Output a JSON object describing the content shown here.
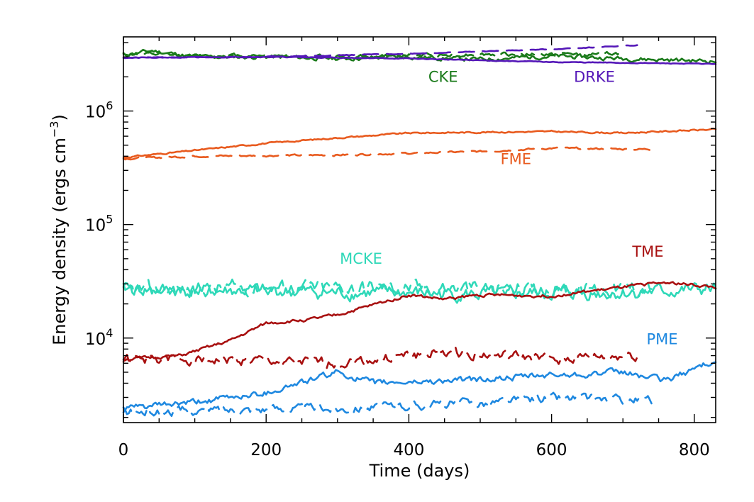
{
  "chart_data": {
    "type": "line",
    "xlabel": "Time (days)",
    "ylabel_main": "Energy density (ergs cm",
    "ylabel_sup": "−3",
    "ylabel_close": ")",
    "xlim": [
      0,
      830
    ],
    "ylim": [
      1800,
      4500000
    ],
    "yscale": "log",
    "x_ticks": [
      0,
      200,
      400,
      600,
      800
    ],
    "x_tick_labels": [
      "0",
      "200",
      "400",
      "600",
      "800"
    ],
    "y_ticks": [
      {
        "value": 10000,
        "base": "10",
        "exp": "4"
      },
      {
        "value": 100000,
        "base": "10",
        "exp": "5"
      },
      {
        "value": 1000000,
        "base": "10",
        "exp": "6"
      }
    ],
    "grid": false,
    "series": [
      {
        "name": "CKE",
        "label_pos": [
          448,
          1800000
        ],
        "color": "#1a7a1a",
        "style": "solid",
        "seed": 11,
        "noise": 0.035,
        "points": [
          [
            0,
            3100000
          ],
          [
            40,
            3400000
          ],
          [
            100,
            3000000
          ],
          [
            200,
            3000000
          ],
          [
            300,
            2900000
          ],
          [
            400,
            3000000
          ],
          [
            500,
            2850000
          ],
          [
            600,
            3050000
          ],
          [
            700,
            2900000
          ],
          [
            830,
            2750000
          ]
        ]
      },
      {
        "name": "",
        "color": "#1a7a1a",
        "style": "dashed",
        "seed": 12,
        "noise": 0.03,
        "points": [
          [
            0,
            3200000
          ],
          [
            100,
            3050000
          ],
          [
            200,
            3100000
          ],
          [
            300,
            3000000
          ],
          [
            400,
            3100000
          ],
          [
            500,
            3150000
          ],
          [
            600,
            3150000
          ],
          [
            700,
            3200000
          ]
        ]
      },
      {
        "name": "DRKE",
        "label_pos": [
          660,
          1800000
        ],
        "color": "#5518b8",
        "style": "solid",
        "seed": 21,
        "noise": 0.006,
        "points": [
          [
            0,
            2950000
          ],
          [
            200,
            3000000
          ],
          [
            400,
            2900000
          ],
          [
            600,
            2700000
          ],
          [
            830,
            2600000
          ]
        ]
      },
      {
        "name": "",
        "color": "#5518b8",
        "style": "dashed",
        "seed": 22,
        "noise": 0.006,
        "points": [
          [
            0,
            2950000
          ],
          [
            200,
            3000000
          ],
          [
            400,
            3200000
          ],
          [
            600,
            3500000
          ],
          [
            720,
            3800000
          ]
        ]
      },
      {
        "name": "FME",
        "label_pos": [
          550,
          340000
        ],
        "color": "#e85a1e",
        "style": "solid",
        "seed": 31,
        "noise": 0.012,
        "points": [
          [
            0,
            390000
          ],
          [
            100,
            450000
          ],
          [
            200,
            520000
          ],
          [
            300,
            580000
          ],
          [
            400,
            640000
          ],
          [
            500,
            650000
          ],
          [
            600,
            660000
          ],
          [
            700,
            640000
          ],
          [
            830,
            690000
          ]
        ]
      },
      {
        "name": "",
        "color": "#e85a1e",
        "style": "dashed",
        "seed": 32,
        "noise": 0.015,
        "points": [
          [
            0,
            380000
          ],
          [
            100,
            400000
          ],
          [
            300,
            410000
          ],
          [
            500,
            440000
          ],
          [
            600,
            470000
          ],
          [
            740,
            460000
          ]
        ]
      },
      {
        "name": "MCKE",
        "label_pos": [
          333,
          45000
        ],
        "color": "#2ed8b8",
        "style": "solid",
        "seed": 41,
        "noise": 0.11,
        "points": [
          [
            0,
            27000
          ],
          [
            100,
            26000
          ],
          [
            200,
            26000
          ],
          [
            300,
            25000
          ],
          [
            400,
            25000
          ],
          [
            500,
            24000
          ],
          [
            600,
            25000
          ],
          [
            700,
            25000
          ],
          [
            830,
            27000
          ]
        ]
      },
      {
        "name": "",
        "color": "#2ed8b8",
        "style": "dashed",
        "seed": 42,
        "noise": 0.12,
        "points": [
          [
            0,
            26000
          ],
          [
            200,
            28000
          ],
          [
            400,
            28000
          ],
          [
            600,
            27000
          ],
          [
            740,
            28000
          ]
        ]
      },
      {
        "name": "TME",
        "label_pos": [
          735,
          52000
        ],
        "color": "#a81010",
        "style": "solid",
        "seed": 51,
        "noise": 0.025,
        "points": [
          [
            0,
            6500
          ],
          [
            80,
            7000
          ],
          [
            150,
            9500
          ],
          [
            200,
            13500
          ],
          [
            260,
            14500
          ],
          [
            300,
            16000
          ],
          [
            400,
            24000
          ],
          [
            450,
            22000
          ],
          [
            500,
            24000
          ],
          [
            600,
            23500
          ],
          [
            700,
            28000
          ],
          [
            760,
            31000
          ],
          [
            830,
            28000
          ]
        ]
      },
      {
        "name": "",
        "color": "#a81010",
        "style": "dashed",
        "seed": 52,
        "noise": 0.08,
        "points": [
          [
            0,
            6500
          ],
          [
            100,
            6500
          ],
          [
            300,
            6000
          ],
          [
            450,
            7500
          ],
          [
            600,
            6500
          ],
          [
            720,
            7000
          ]
        ]
      },
      {
        "name": "PME",
        "label_pos": [
          755,
          8800
        ],
        "color": "#1e88e0",
        "style": "solid",
        "seed": 61,
        "noise": 0.05,
        "points": [
          [
            0,
            2400
          ],
          [
            100,
            2700
          ],
          [
            200,
            3300
          ],
          [
            300,
            5000
          ],
          [
            350,
            4000
          ],
          [
            500,
            4300
          ],
          [
            600,
            4700
          ],
          [
            700,
            5000
          ],
          [
            760,
            4200
          ],
          [
            830,
            6500
          ]
        ]
      },
      {
        "name": "",
        "color": "#1e88e0",
        "style": "dashed",
        "seed": 62,
        "noise": 0.07,
        "points": [
          [
            0,
            2200
          ],
          [
            100,
            2300
          ],
          [
            200,
            2400
          ],
          [
            300,
            2400
          ],
          [
            500,
            2700
          ],
          [
            600,
            3000
          ],
          [
            740,
            2800
          ]
        ]
      }
    ]
  }
}
